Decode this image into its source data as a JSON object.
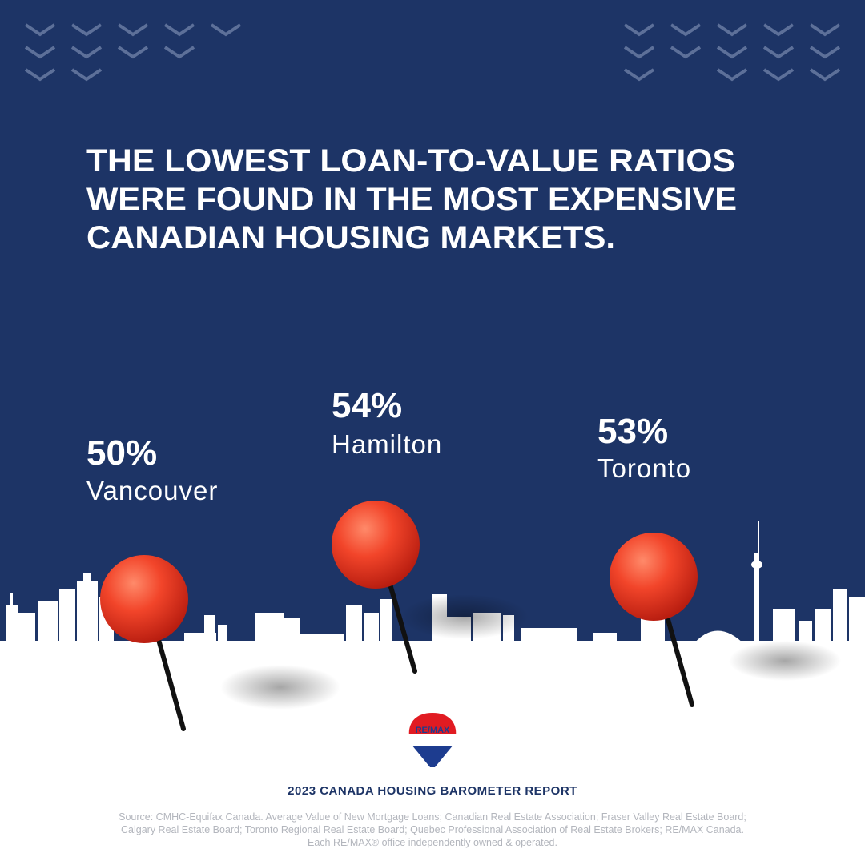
{
  "title": {
    "lines": [
      "THE LOWEST LOAN-TO-VALUE RATIOS",
      "WERE FOUND IN THE MOST EXPENSIVE",
      "CANADIAN HOUSING MARKETS."
    ]
  },
  "markets": [
    {
      "value": "50%",
      "city": "Vancouver"
    },
    {
      "value": "54%",
      "city": "Hamilton"
    },
    {
      "value": "53%",
      "city": "Toronto"
    }
  ],
  "logo": {
    "text": "RE/MAX"
  },
  "footer": {
    "report": "2023 CANADA HOUSING BAROMETER REPORT",
    "source": [
      "Source: CMHC-Equifax Canada. Average Value of New Mortgage Loans; Canadian Real Estate Association; Fraser Valley Real Estate Board;",
      "Calgary Real Estate Board; Toronto Regional Real Estate Board; Quebec Professional Association of  Real Estate Brokers; RE/MAX Canada.",
      "Each RE/MAX® office independently owned & operated."
    ]
  }
}
